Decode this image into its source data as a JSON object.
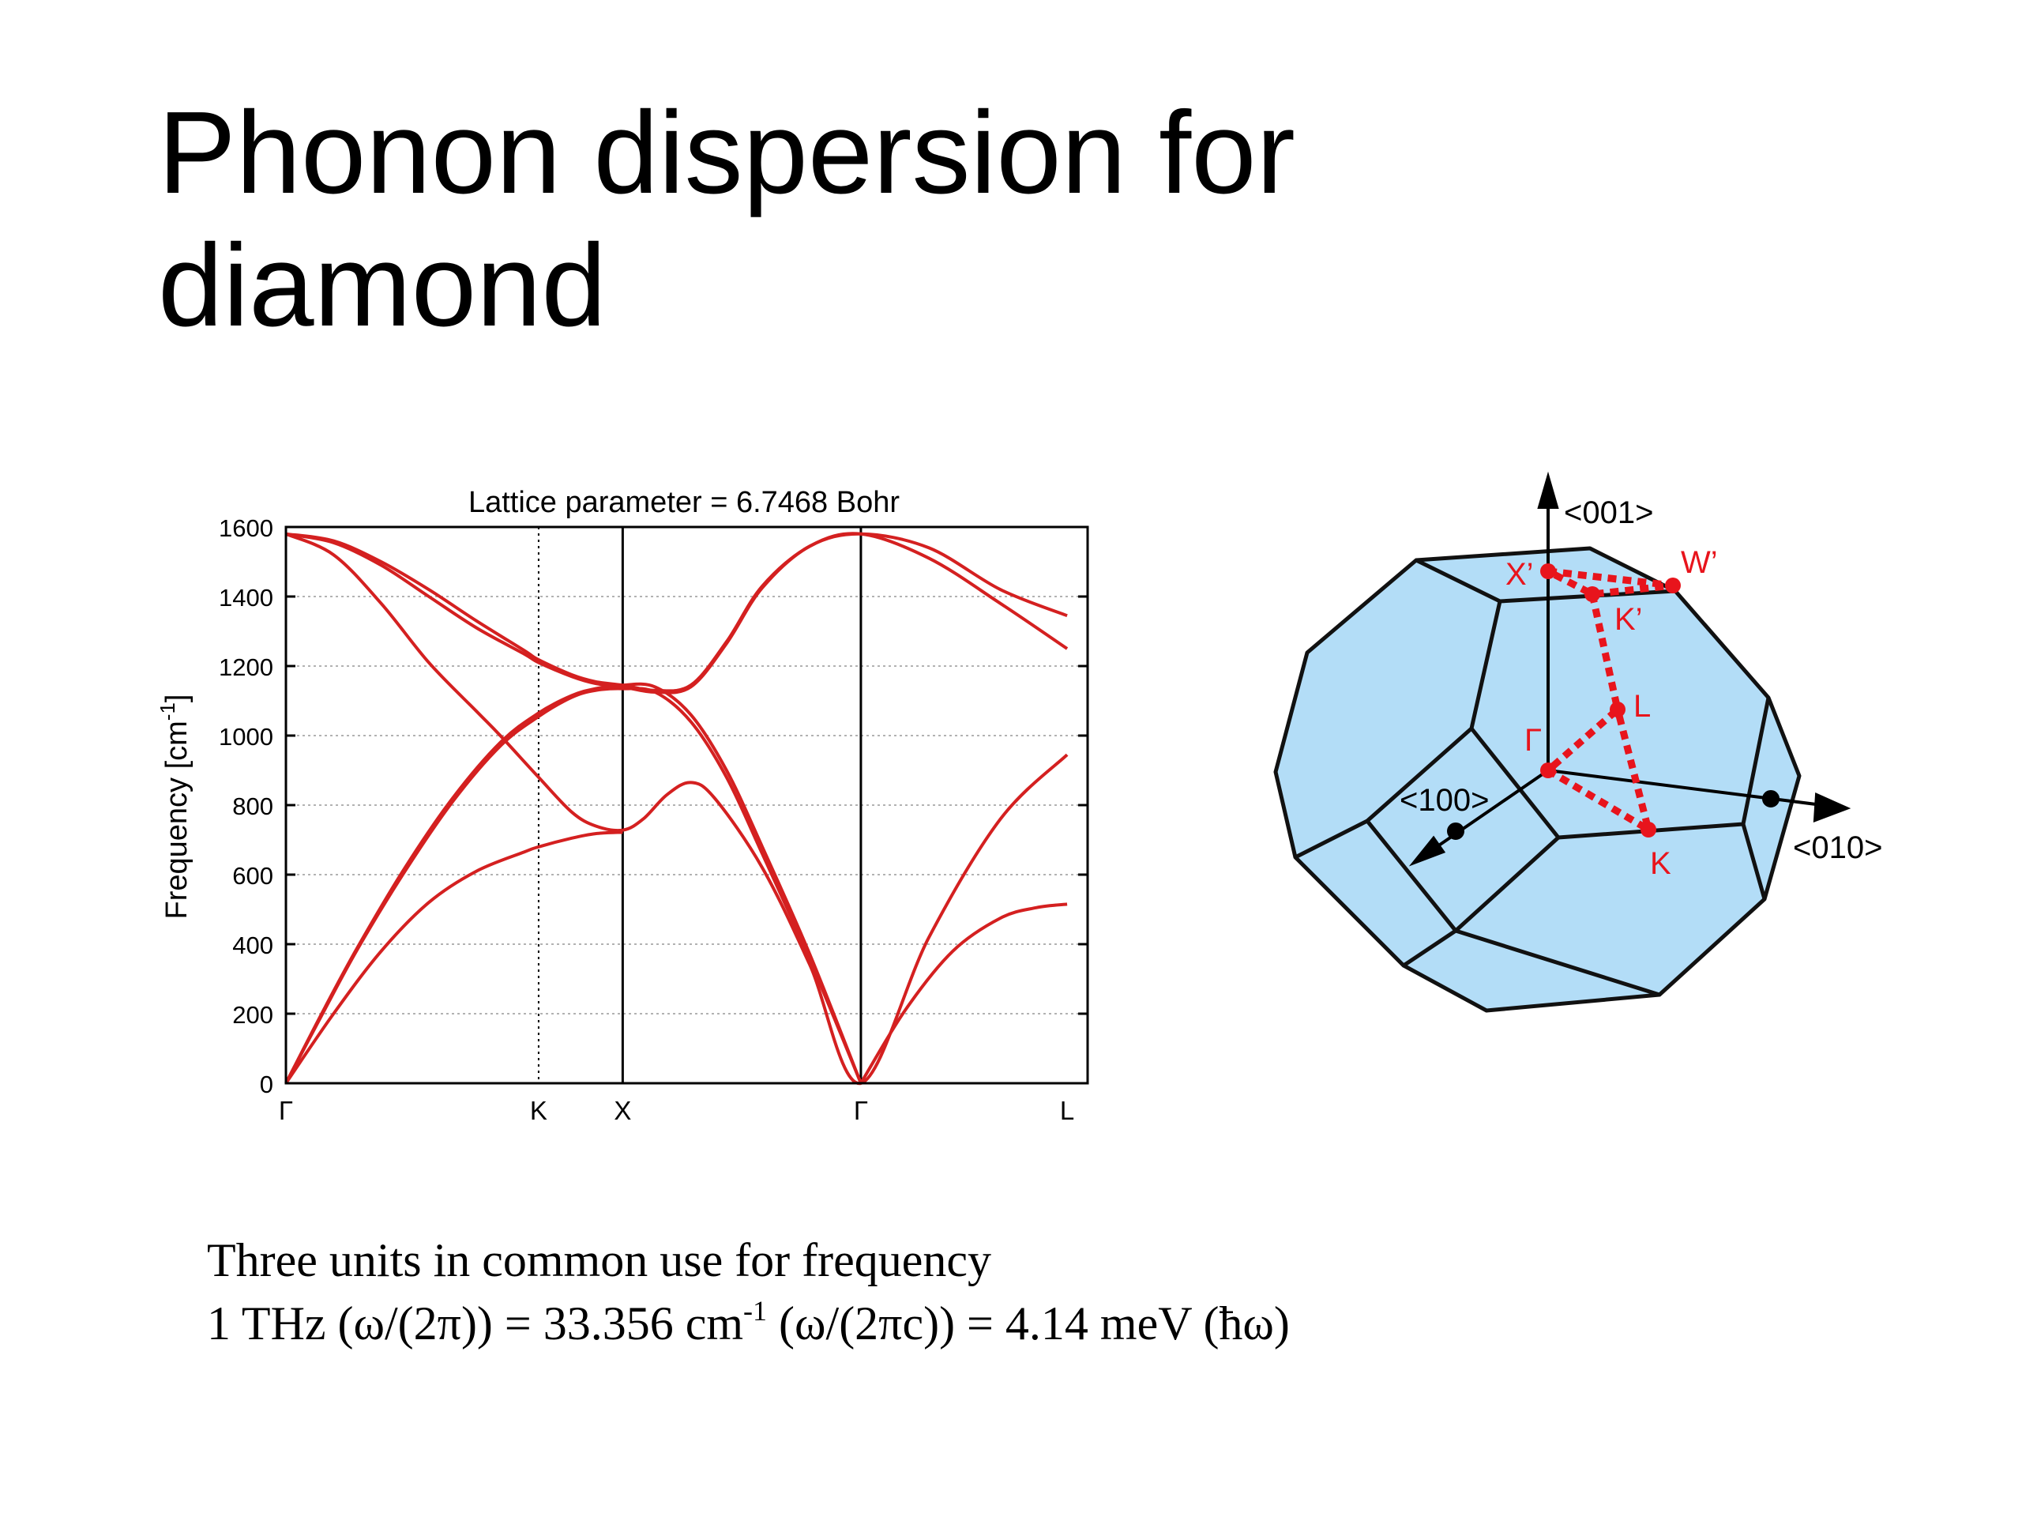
{
  "slide": {
    "title_line1": "Phonon dispersion for",
    "title_line2": "diamond",
    "footnote": {
      "line1": "Three units in common use for frequency",
      "line2_a": "1 THz (ω/(2π)) = 33.356 cm",
      "line2_sup": "-1",
      "line2_b": " (ω/(2πc)) = 4.14 meV (ħω)"
    }
  },
  "colors": {
    "curve": "#d42020",
    "bz_fill": "#b3ddf7",
    "bz_edge": "#111111",
    "bz_path": "#e8141c",
    "grid": "#999999"
  },
  "chart_data": {
    "type": "line",
    "title": "Lattice parameter = 6.7468 Bohr",
    "xlabel": "",
    "ylabel": "Frequency [cm",
    "ylabel_sup": "-1",
    "ylabel_end": "]",
    "ylim": [
      0,
      1600
    ],
    "yticks": [
      0,
      200,
      400,
      600,
      800,
      1000,
      1200,
      1400,
      1600
    ],
    "xlim": [
      0,
      3.366
    ],
    "high_symmetry_points": [
      {
        "label": "Γ",
        "x": 0.0,
        "line": "none"
      },
      {
        "label": "K",
        "x": 1.061,
        "line": "dotted"
      },
      {
        "label": "X",
        "x": 1.414,
        "line": "solid"
      },
      {
        "label": "Γ",
        "x": 2.414,
        "line": "solid"
      },
      {
        "label": "L",
        "x": 3.28,
        "line": "none"
      }
    ],
    "grid": true,
    "legend": "none",
    "series": [
      {
        "values": [
          [
            0,
            1580
          ],
          [
            0.2,
            1560
          ],
          [
            0.4,
            1500
          ],
          [
            0.6,
            1420
          ],
          [
            0.8,
            1330
          ],
          [
            1.0,
            1245
          ],
          [
            1.061,
            1218
          ],
          [
            1.2,
            1175
          ],
          [
            1.3,
            1155
          ],
          [
            1.414,
            1145
          ],
          [
            1.55,
            1130
          ],
          [
            1.7,
            1145
          ],
          [
            1.85,
            1270
          ],
          [
            2.0,
            1430
          ],
          [
            2.2,
            1545
          ],
          [
            2.414,
            1580
          ],
          [
            2.7,
            1540
          ],
          [
            3.0,
            1420
          ],
          [
            3.28,
            1345
          ]
        ]
      },
      {
        "values": [
          [
            0,
            1580
          ],
          [
            0.2,
            1555
          ],
          [
            0.4,
            1490
          ],
          [
            0.6,
            1400
          ],
          [
            0.8,
            1310
          ],
          [
            1.0,
            1235
          ],
          [
            1.061,
            1210
          ],
          [
            1.2,
            1170
          ],
          [
            1.3,
            1150
          ],
          [
            1.414,
            1140
          ],
          [
            1.55,
            1125
          ],
          [
            1.7,
            1140
          ],
          [
            1.85,
            1265
          ],
          [
            2.0,
            1425
          ],
          [
            2.2,
            1545
          ],
          [
            2.414,
            1580
          ],
          [
            2.7,
            1510
          ],
          [
            3.0,
            1380
          ],
          [
            3.28,
            1250
          ]
        ]
      },
      {
        "values": [
          [
            0,
            1580
          ],
          [
            0.2,
            1520
          ],
          [
            0.4,
            1380
          ],
          [
            0.6,
            1210
          ],
          [
            0.8,
            1070
          ],
          [
            0.9,
            1000
          ],
          [
            1.061,
            880
          ],
          [
            1.2,
            780
          ],
          [
            1.3,
            740
          ],
          [
            1.414,
            728
          ],
          [
            1.5,
            760
          ],
          [
            1.6,
            830
          ],
          [
            1.7,
            865
          ],
          [
            1.8,
            820
          ],
          [
            2.0,
            620
          ],
          [
            2.2,
            340
          ],
          [
            2.414,
            0
          ],
          [
            2.7,
            420
          ],
          [
            3.0,
            760
          ],
          [
            3.28,
            945
          ]
        ]
      },
      {
        "values": [
          [
            0,
            0
          ],
          [
            0.15,
            200
          ],
          [
            0.3,
            390
          ],
          [
            0.5,
            620
          ],
          [
            0.7,
            820
          ],
          [
            0.9,
            980
          ],
          [
            1.061,
            1065
          ],
          [
            1.2,
            1115
          ],
          [
            1.3,
            1135
          ],
          [
            1.414,
            1145
          ],
          [
            1.55,
            1140
          ],
          [
            1.7,
            1060
          ],
          [
            1.85,
            900
          ],
          [
            2.0,
            680
          ],
          [
            2.2,
            370
          ],
          [
            2.414,
            0
          ]
        ]
      },
      {
        "values": [
          [
            0,
            0
          ],
          [
            0.15,
            195
          ],
          [
            0.3,
            385
          ],
          [
            0.5,
            610
          ],
          [
            0.7,
            810
          ],
          [
            0.9,
            970
          ],
          [
            1.061,
            1055
          ],
          [
            1.2,
            1110
          ],
          [
            1.3,
            1130
          ],
          [
            1.414,
            1135
          ],
          [
            1.55,
            1125
          ],
          [
            1.7,
            1040
          ],
          [
            1.85,
            880
          ],
          [
            2.0,
            660
          ],
          [
            2.2,
            355
          ],
          [
            2.414,
            0
          ]
        ]
      },
      {
        "values": [
          [
            0,
            0
          ],
          [
            0.2,
            200
          ],
          [
            0.4,
            380
          ],
          [
            0.6,
            520
          ],
          [
            0.8,
            610
          ],
          [
            1.0,
            665
          ],
          [
            1.061,
            680
          ],
          [
            1.2,
            705
          ],
          [
            1.3,
            718
          ],
          [
            1.414,
            722
          ]
        ]
      },
      {
        "values": [
          [
            2.414,
            0
          ],
          [
            2.6,
            210
          ],
          [
            2.8,
            380
          ],
          [
            3.0,
            475
          ],
          [
            3.15,
            505
          ],
          [
            3.28,
            515
          ]
        ]
      }
    ]
  },
  "brillouin_zone": {
    "axis_labels": {
      "z": "<001>",
      "x": "<100>",
      "y": "<010>"
    },
    "point_labels": {
      "X_prime": "X’",
      "W_prime": "W’",
      "K_prime": "K’",
      "L": "L",
      "Gamma": "Γ",
      "K": "K"
    }
  }
}
